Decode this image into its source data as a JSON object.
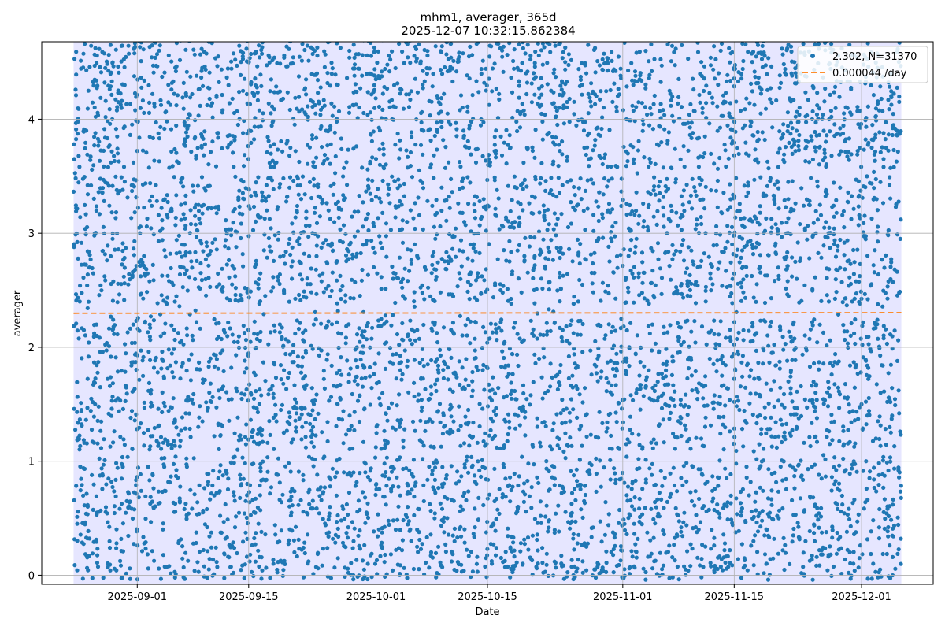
{
  "chart_data": {
    "type": "scatter",
    "title": "mhm1, averager, 365d",
    "subtitle": "2025-12-07 10:32:15.862384",
    "xlabel": "Date",
    "ylabel": "averager",
    "x_range": [
      "2025-08-20",
      "2025-12-10"
    ],
    "data_span": [
      "2025-08-24",
      "2025-12-06"
    ],
    "ylim": [
      -0.08,
      4.68
    ],
    "x_ticks": [
      "2025-09-01",
      "2025-09-15",
      "2025-10-01",
      "2025-10-15",
      "2025-11-01",
      "2025-11-15",
      "2025-12-01"
    ],
    "y_ticks": [
      0,
      1,
      2,
      3,
      4
    ],
    "grid": true,
    "legend_position": "top-right",
    "series": [
      {
        "name": "2.302, N=31370",
        "kind": "scatter",
        "color": "#1f77b4",
        "description": "dense scatter filling the band 0 to 4.7 across the whole range, sparse gap near 2.3"
      },
      {
        "name": "0.000044 /day",
        "kind": "trend-line",
        "style": "dashed",
        "color": "#ff7f0e",
        "x": [
          "2025-08-24",
          "2025-12-06"
        ],
        "y": [
          2.298,
          2.303
        ]
      }
    ],
    "background_band": {
      "color": "#e6e6ff"
    }
  }
}
